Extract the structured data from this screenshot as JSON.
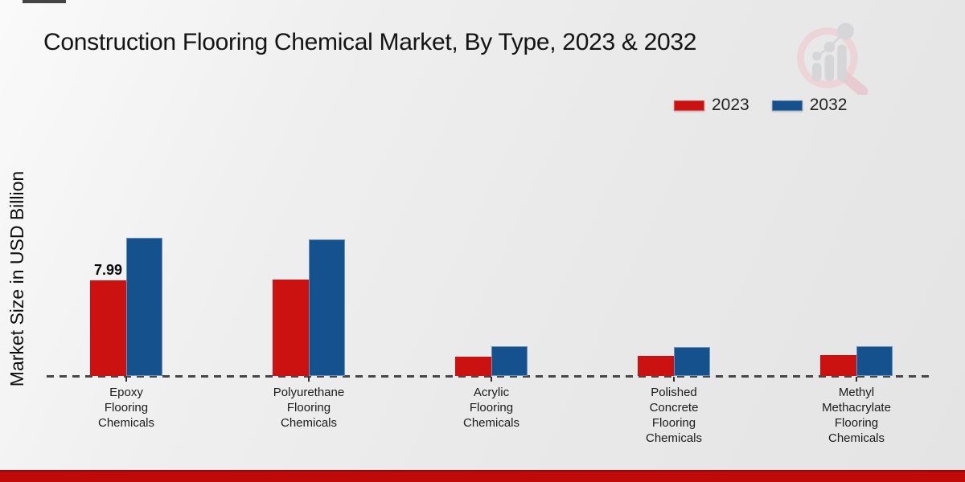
{
  "chart_data": {
    "type": "bar",
    "title": "Construction Flooring Chemical Market, By Type, 2023 & 2032",
    "xlabel": "",
    "ylabel": "Market Size in USD Billion",
    "categories": [
      "Epoxy Flooring Chemicals",
      "Polyurethane Flooring Chemicals",
      "Acrylic Flooring Chemicals",
      "Polished Concrete Flooring Chemicals",
      "Methyl Methacrylate Flooring Chemicals"
    ],
    "series": [
      {
        "name": "2023",
        "color": "#cc1111",
        "values": [
          7.99,
          8.05,
          1.6,
          1.7,
          1.75
        ]
      },
      {
        "name": "2032",
        "color": "#15518d",
        "values": [
          11.55,
          11.4,
          2.5,
          2.4,
          2.5
        ]
      }
    ],
    "annotations": [
      {
        "text": "7.99",
        "series_index": 0,
        "category_index": 0
      }
    ],
    "ylim": [
      0,
      12.5
    ],
    "grid": false,
    "legend_position": "top-right",
    "baseline_style": "dashed",
    "y_axis_ticks_visible": false
  },
  "branding": {
    "watermark_icon": "bar-chart-magnifier-logo",
    "footer_accent_color": "#c00a0a"
  }
}
